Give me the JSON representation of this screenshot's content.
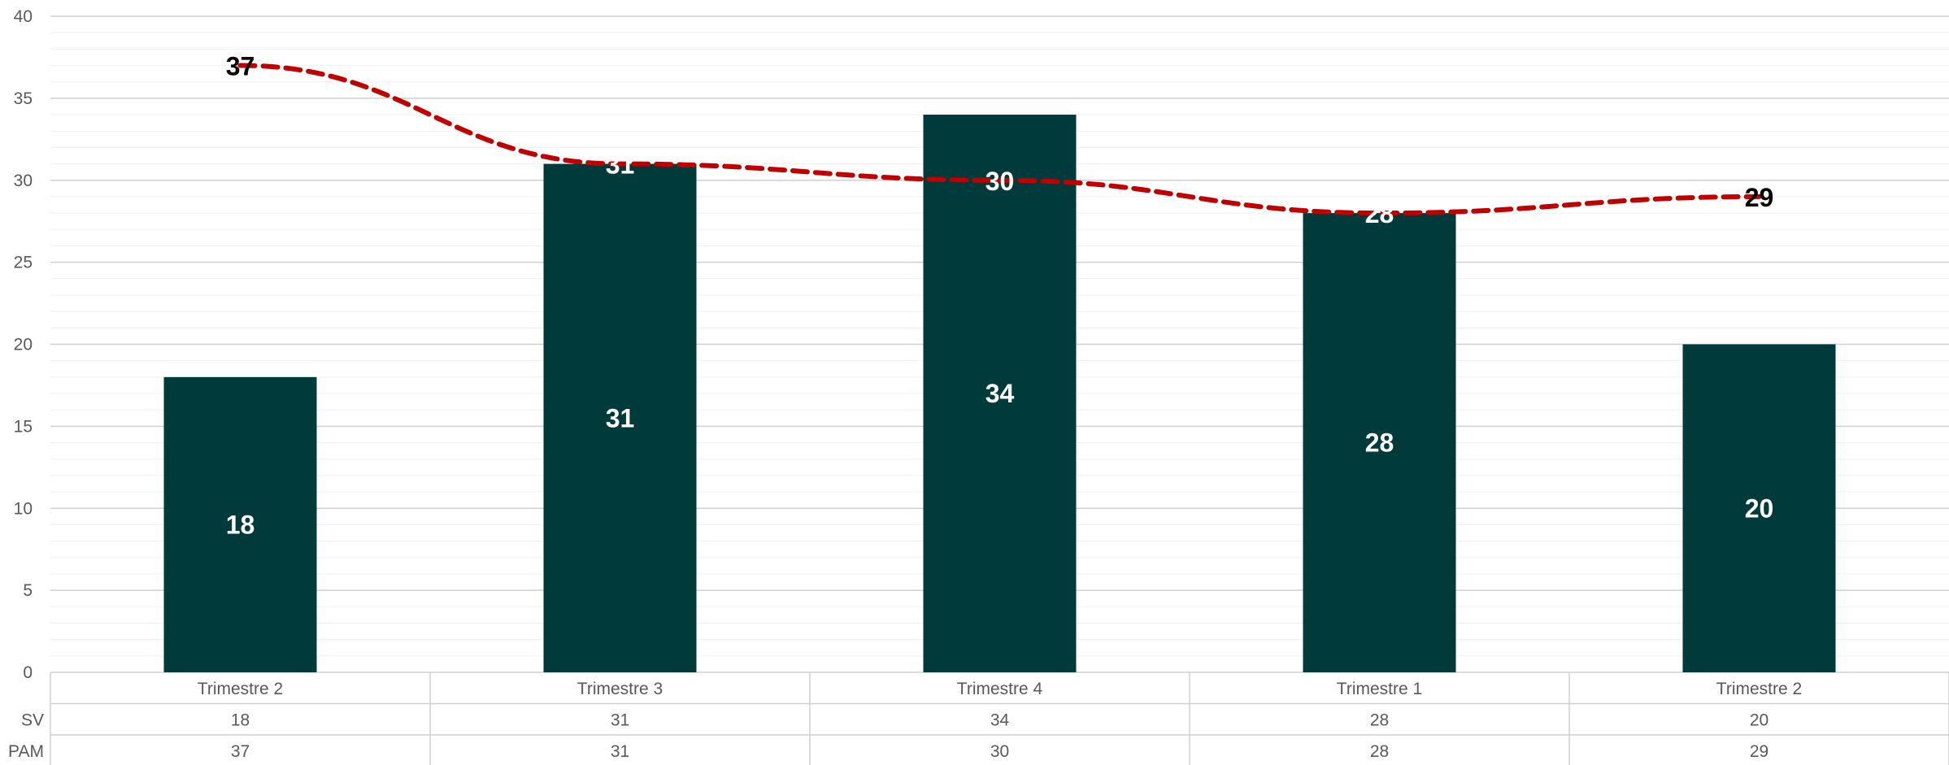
{
  "chart_data": {
    "type": "bar",
    "categories": [
      "Trimestre 2",
      "Trimestre 3",
      "Trimestre 4",
      "Trimestre 1",
      "Trimestre 2"
    ],
    "series": [
      {
        "name": "SV",
        "type": "bar",
        "values": [
          18,
          31,
          34,
          28,
          20
        ],
        "color": "#013A3B"
      },
      {
        "name": "PAM",
        "type": "line",
        "style": "dashed",
        "values": [
          37,
          31,
          30,
          28,
          29
        ],
        "color": "#C00000"
      }
    ],
    "ylim": [
      0,
      40
    ],
    "yticks": [
      0,
      5,
      10,
      15,
      20,
      25,
      30,
      35,
      40
    ],
    "grid": true,
    "data_table": true,
    "title": "",
    "xlabel": "",
    "ylabel": ""
  }
}
